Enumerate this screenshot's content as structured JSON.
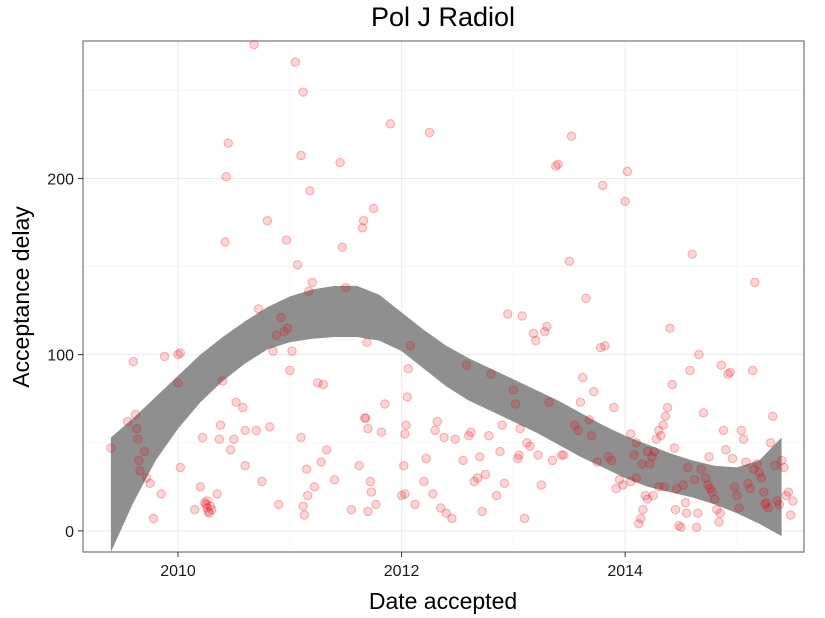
{
  "chart_data": {
    "type": "scatter",
    "title": "Pol J Radiol",
    "xlabel": "Date accepted",
    "ylabel": "Acceptance delay",
    "xlim": [
      2009.15,
      2015.6
    ],
    "ylim": [
      -12,
      278
    ],
    "x_ticks": [
      2010,
      2012,
      2014
    ],
    "y_ticks": [
      0,
      100,
      200
    ],
    "grid": true,
    "colors": {
      "points": "#e8000b",
      "band": "#8f8f8f",
      "panel_border": "#7f7f7f",
      "grid": "#ebebeb"
    },
    "series": [
      {
        "type": "scatter",
        "points": [
          [
            2009.4,
            47
          ],
          [
            2009.55,
            62
          ],
          [
            2009.6,
            96
          ],
          [
            2009.62,
            66
          ],
          [
            2009.63,
            58
          ],
          [
            2009.64,
            52
          ],
          [
            2009.65,
            40
          ],
          [
            2009.66,
            34
          ],
          [
            2009.7,
            45
          ],
          [
            2009.72,
            30
          ],
          [
            2009.75,
            27
          ],
          [
            2009.78,
            7
          ],
          [
            2009.85,
            21
          ],
          [
            2009.88,
            99
          ],
          [
            2010.0,
            100
          ],
          [
            2010.02,
            101
          ],
          [
            2010.0,
            84
          ],
          [
            2010.02,
            36
          ],
          [
            2010.15,
            12
          ],
          [
            2010.2,
            25
          ],
          [
            2010.22,
            53
          ],
          [
            2010.24,
            16
          ],
          [
            2010.25,
            15
          ],
          [
            2010.26,
            13
          ],
          [
            2010.27,
            11
          ],
          [
            2010.28,
            10
          ],
          [
            2010.29,
            14
          ],
          [
            2010.26,
            17
          ],
          [
            2010.3,
            12
          ],
          [
            2010.35,
            21
          ],
          [
            2010.37,
            52
          ],
          [
            2010.38,
            60
          ],
          [
            2010.4,
            85
          ],
          [
            2010.42,
            164
          ],
          [
            2010.43,
            201
          ],
          [
            2010.45,
            220
          ],
          [
            2010.47,
            46
          ],
          [
            2010.5,
            52
          ],
          [
            2010.52,
            73
          ],
          [
            2010.58,
            70
          ],
          [
            2010.6,
            37
          ],
          [
            2010.6,
            57
          ],
          [
            2010.68,
            276
          ],
          [
            2010.7,
            57
          ],
          [
            2010.72,
            126
          ],
          [
            2010.75,
            28
          ],
          [
            2010.8,
            176
          ],
          [
            2010.82,
            59
          ],
          [
            2010.85,
            102
          ],
          [
            2010.88,
            111
          ],
          [
            2010.9,
            15
          ],
          [
            2010.92,
            121
          ],
          [
            2010.95,
            113
          ],
          [
            2010.97,
            165
          ],
          [
            2010.98,
            115
          ],
          [
            2011.0,
            91
          ],
          [
            2011.02,
            102
          ],
          [
            2011.05,
            266
          ],
          [
            2011.07,
            151
          ],
          [
            2011.1,
            213
          ],
          [
            2011.12,
            249
          ],
          [
            2011.1,
            53
          ],
          [
            2011.12,
            14
          ],
          [
            2011.13,
            9
          ],
          [
            2011.15,
            35
          ],
          [
            2011.16,
            20
          ],
          [
            2011.17,
            136
          ],
          [
            2011.18,
            193
          ],
          [
            2011.2,
            141
          ],
          [
            2011.22,
            25
          ],
          [
            2011.25,
            84
          ],
          [
            2011.28,
            39
          ],
          [
            2011.3,
            83
          ],
          [
            2011.33,
            46
          ],
          [
            2011.4,
            29
          ],
          [
            2011.45,
            209
          ],
          [
            2011.47,
            161
          ],
          [
            2011.5,
            138
          ],
          [
            2011.55,
            12
          ],
          [
            2011.62,
            37
          ],
          [
            2011.65,
            172
          ],
          [
            2011.66,
            176
          ],
          [
            2011.67,
            64
          ],
          [
            2011.68,
            64
          ],
          [
            2011.69,
            107
          ],
          [
            2011.7,
            58
          ],
          [
            2011.7,
            11
          ],
          [
            2011.72,
            28
          ],
          [
            2011.73,
            22
          ],
          [
            2011.75,
            183
          ],
          [
            2011.77,
            15
          ],
          [
            2011.82,
            56
          ],
          [
            2011.85,
            72
          ],
          [
            2011.9,
            231
          ],
          [
            2012.0,
            20
          ],
          [
            2012.02,
            37
          ],
          [
            2012.03,
            21
          ],
          [
            2012.03,
            55
          ],
          [
            2012.04,
            60
          ],
          [
            2012.05,
            76
          ],
          [
            2012.06,
            92
          ],
          [
            2012.08,
            105
          ],
          [
            2012.12,
            15
          ],
          [
            2012.2,
            28
          ],
          [
            2012.22,
            41
          ],
          [
            2012.25,
            226
          ],
          [
            2012.28,
            21
          ],
          [
            2012.3,
            57
          ],
          [
            2012.32,
            62
          ],
          [
            2012.35,
            13
          ],
          [
            2012.38,
            53
          ],
          [
            2012.4,
            10
          ],
          [
            2012.45,
            7
          ],
          [
            2012.48,
            52
          ],
          [
            2012.55,
            40
          ],
          [
            2012.58,
            94
          ],
          [
            2012.6,
            54
          ],
          [
            2012.62,
            56
          ],
          [
            2012.65,
            28
          ],
          [
            2012.68,
            30
          ],
          [
            2012.7,
            42
          ],
          [
            2012.72,
            11
          ],
          [
            2012.75,
            32
          ],
          [
            2012.78,
            54
          ],
          [
            2012.8,
            89
          ],
          [
            2012.85,
            20
          ],
          [
            2012.88,
            45
          ],
          [
            2012.9,
            60
          ],
          [
            2012.92,
            27
          ],
          [
            2012.95,
            123
          ],
          [
            2013.0,
            80
          ],
          [
            2013.02,
            72
          ],
          [
            2013.04,
            41
          ],
          [
            2013.05,
            43
          ],
          [
            2013.06,
            58
          ],
          [
            2013.08,
            122
          ],
          [
            2013.1,
            7
          ],
          [
            2013.12,
            50
          ],
          [
            2013.15,
            48
          ],
          [
            2013.18,
            112
          ],
          [
            2013.2,
            108
          ],
          [
            2013.22,
            43
          ],
          [
            2013.25,
            26
          ],
          [
            2013.28,
            113
          ],
          [
            2013.3,
            116
          ],
          [
            2013.32,
            73
          ],
          [
            2013.35,
            40
          ],
          [
            2013.38,
            207
          ],
          [
            2013.4,
            208
          ],
          [
            2013.43,
            43
          ],
          [
            2013.45,
            43
          ],
          [
            2013.5,
            153
          ],
          [
            2013.52,
            224
          ],
          [
            2013.55,
            60
          ],
          [
            2013.58,
            57
          ],
          [
            2013.6,
            73
          ],
          [
            2013.62,
            87
          ],
          [
            2013.65,
            132
          ],
          [
            2013.68,
            63
          ],
          [
            2013.7,
            54
          ],
          [
            2013.72,
            79
          ],
          [
            2013.75,
            39
          ],
          [
            2013.78,
            104
          ],
          [
            2013.8,
            196
          ],
          [
            2013.82,
            105
          ],
          [
            2013.85,
            42
          ],
          [
            2013.88,
            40
          ],
          [
            2013.9,
            70
          ],
          [
            2013.92,
            24
          ],
          [
            2013.95,
            29
          ],
          [
            2013.98,
            26
          ],
          [
            2014.0,
            187
          ],
          [
            2014.02,
            204
          ],
          [
            2014.05,
            28
          ],
          [
            2014.08,
            43
          ],
          [
            2014.1,
            30
          ],
          [
            2014.12,
            4
          ],
          [
            2014.14,
            7
          ],
          [
            2014.16,
            12
          ],
          [
            2014.18,
            20
          ],
          [
            2014.2,
            18
          ],
          [
            2014.22,
            38
          ],
          [
            2014.24,
            42
          ],
          [
            2014.26,
            45
          ],
          [
            2014.28,
            52
          ],
          [
            2014.3,
            57
          ],
          [
            2014.32,
            54
          ],
          [
            2014.34,
            60
          ],
          [
            2014.36,
            65
          ],
          [
            2014.38,
            70
          ],
          [
            2014.4,
            115
          ],
          [
            2014.42,
            83
          ],
          [
            2014.44,
            47
          ],
          [
            2014.46,
            24
          ],
          [
            2014.48,
            3
          ],
          [
            2014.5,
            2
          ],
          [
            2014.52,
            26
          ],
          [
            2014.54,
            16
          ],
          [
            2014.56,
            36
          ],
          [
            2014.58,
            91
          ],
          [
            2014.6,
            157
          ],
          [
            2014.62,
            29
          ],
          [
            2014.64,
            2
          ],
          [
            2014.66,
            100
          ],
          [
            2014.68,
            35
          ],
          [
            2014.7,
            67
          ],
          [
            2014.72,
            30
          ],
          [
            2014.74,
            26
          ],
          [
            2014.76,
            24
          ],
          [
            2014.78,
            22
          ],
          [
            2014.8,
            18
          ],
          [
            2014.82,
            12
          ],
          [
            2014.84,
            5
          ],
          [
            2014.86,
            94
          ],
          [
            2014.88,
            57
          ],
          [
            2014.9,
            46
          ],
          [
            2014.92,
            89
          ],
          [
            2014.94,
            90
          ],
          [
            2014.96,
            41
          ],
          [
            2014.98,
            25
          ],
          [
            2015.0,
            20
          ],
          [
            2015.02,
            13
          ],
          [
            2015.04,
            57
          ],
          [
            2015.06,
            52
          ],
          [
            2015.08,
            39
          ],
          [
            2015.1,
            27
          ],
          [
            2015.12,
            24
          ],
          [
            2015.14,
            91
          ],
          [
            2015.16,
            141
          ],
          [
            2015.18,
            38
          ],
          [
            2015.2,
            33
          ],
          [
            2015.22,
            30
          ],
          [
            2015.24,
            22
          ],
          [
            2015.26,
            16
          ],
          [
            2015.28,
            13
          ],
          [
            2015.3,
            50
          ],
          [
            2015.32,
            65
          ],
          [
            2015.34,
            37
          ],
          [
            2015.36,
            17
          ],
          [
            2015.38,
            15
          ],
          [
            2015.4,
            40
          ],
          [
            2015.42,
            36
          ],
          [
            2015.44,
            20
          ],
          [
            2015.46,
            22
          ],
          [
            2015.48,
            9
          ],
          [
            2015.5,
            17
          ],
          [
            2014.3,
            25
          ],
          [
            2014.35,
            25
          ],
          [
            2014.15,
            38
          ],
          [
            2014.05,
            55
          ],
          [
            2014.1,
            50
          ],
          [
            2014.2,
            45
          ],
          [
            2014.25,
            20
          ],
          [
            2014.45,
            12
          ],
          [
            2014.55,
            10
          ],
          [
            2014.65,
            10
          ],
          [
            2014.75,
            42
          ],
          [
            2015.15,
            35
          ],
          [
            2015.25,
            15
          ],
          [
            2014.85,
            10
          ]
        ]
      },
      {
        "type": "confidence-band",
        "x": [
          2009.4,
          2009.6,
          2009.8,
          2010.0,
          2010.2,
          2010.4,
          2010.6,
          2010.8,
          2011.0,
          2011.2,
          2011.4,
          2011.6,
          2011.8,
          2012.0,
          2012.2,
          2012.4,
          2012.6,
          2012.8,
          2013.0,
          2013.2,
          2013.4,
          2013.6,
          2013.8,
          2014.0,
          2014.2,
          2014.4,
          2014.6,
          2014.8,
          2015.0,
          2015.2,
          2015.4
        ],
        "upper": [
          53,
          64,
          76,
          88,
          100,
          110,
          119,
          127,
          133,
          137,
          139,
          139,
          134,
          124,
          114,
          105,
          98,
          92,
          86,
          80,
          74,
          67,
          60,
          54,
          49,
          44,
          40,
          37,
          36,
          40,
          53
        ],
        "lower": [
          -12,
          16,
          40,
          58,
          73,
          85,
          95,
          103,
          107,
          109,
          110,
          110,
          108,
          102,
          92,
          82,
          74,
          68,
          62,
          56,
          49,
          42,
          36,
          30,
          25,
          22,
          19,
          15,
          10,
          4,
          -3
        ]
      }
    ]
  }
}
